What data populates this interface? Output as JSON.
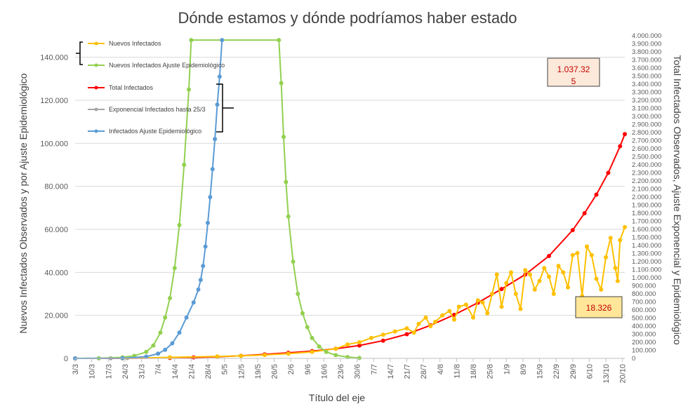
{
  "colors": {
    "nuevos": "#ffc000",
    "ajuste": "#92d050",
    "total": "#ff0000",
    "exponencial": "#a5a5a5",
    "infectados_ajuste": "#5b9bd5",
    "grid": "#d9d9d9",
    "callout_fill_red": "#fde9d9",
    "callout_fill_yellow": "#ffe699"
  },
  "chart_data": {
    "type": "line",
    "title": "Dónde estamos y dónde podríamos haber estado",
    "xlabel": "Título del eje",
    "ylabel_left": "Nuevos Infectados Observados y por Ajuste Epidemiológico",
    "ylabel_right": "Total Infectados Observados, Ajuste Exponencial y Epidemiológico",
    "ylim_left": [
      0,
      150000
    ],
    "ylim_right": [
      0,
      4000000
    ],
    "left_ticks": [
      "0",
      "20.000",
      "40.000",
      "60.000",
      "80.000",
      "100.000",
      "120.000",
      "140.000"
    ],
    "right_ticks": [
      "0",
      "100.000",
      "200.000",
      "300.000",
      "400.000",
      "500.000",
      "600.000",
      "700.000",
      "800.000",
      "900.000",
      "1.000.000",
      "1.100.000",
      "1.200.000",
      "1.300.000",
      "1.400.000",
      "1.500.000",
      "1.600.000",
      "1.700.000",
      "1.800.000",
      "1.900.000",
      "2.000.000",
      "2.100.000",
      "2.200.000",
      "2.300.000",
      "2.400.000",
      "2.500.000",
      "2.600.000",
      "2.700.000",
      "2.800.000",
      "2.900.000",
      "3.000.000",
      "3.100.000",
      "3.200.000",
      "3.300.000",
      "3.400.000",
      "3.500.000",
      "3.600.000",
      "3.700.000",
      "3.800.000",
      "3.900.000",
      "4.000.000"
    ],
    "x_ticks": [
      "3/3",
      "10/3",
      "17/3",
      "24/3",
      "31/3",
      "7/4",
      "14/4",
      "21/4",
      "28/4",
      "5/5",
      "12/5",
      "19/5",
      "26/5",
      "2/6",
      "9/6",
      "16/6",
      "23/6",
      "30/6",
      "7/7",
      "14/7",
      "21/7",
      "28/7",
      "4/8",
      "11/8",
      "18/8",
      "25/8",
      "1/9",
      "8/9",
      "15/9",
      "22/9",
      "29/9",
      "6/10",
      "13/10",
      "20/10"
    ],
    "x_range_days": [
      0,
      232
    ],
    "grid": "horizontal",
    "legend_position": "top-left",
    "legend": [
      {
        "label": "Nuevos Infectados",
        "color": "#ffc000"
      },
      {
        "label": "Nuevos Infectados Ajuste Epidemiológico",
        "color": "#92d050"
      },
      {
        "label": "Total Infectados",
        "color": "#ff0000"
      },
      {
        "label": "Exponencial Infectados hasta 25/3",
        "color": "#a5a5a5"
      },
      {
        "label": "Infectados Ajuste Epidemiológico",
        "color": "#5b9bd5"
      }
    ],
    "annotations": [
      {
        "text_line1": "1.037.32",
        "text_line2": "5",
        "series": "Total Infectados"
      },
      {
        "text_line1": "18.326",
        "series": "Nuevos Infectados"
      }
    ],
    "series": [
      {
        "name": "Total Infectados",
        "axis": "right",
        "color": "#ff0000",
        "points": [
          [
            0,
            100
          ],
          [
            20,
            1000
          ],
          [
            40,
            5000
          ],
          [
            50,
            12000
          ],
          [
            60,
            20000
          ],
          [
            70,
            33000
          ],
          [
            80,
            50000
          ],
          [
            90,
            70000
          ],
          [
            100,
            90000
          ],
          [
            110,
            120000
          ],
          [
            120,
            160000
          ],
          [
            130,
            220000
          ],
          [
            140,
            300000
          ],
          [
            150,
            410000
          ],
          [
            160,
            540000
          ],
          [
            170,
            690000
          ],
          [
            180,
            860000
          ],
          [
            190,
            1040000
          ],
          [
            200,
            1270000
          ],
          [
            210,
            1590000
          ],
          [
            215,
            1800000
          ],
          [
            220,
            2030000
          ],
          [
            225,
            2300000
          ],
          [
            230,
            2630000
          ],
          [
            232,
            2780000
          ]
        ]
      },
      {
        "name": "Nuevos Infectados Ajuste Epidemiológico",
        "axis": "left",
        "color": "#92d050",
        "points": [
          [
            0,
            0
          ],
          [
            10,
            100
          ],
          [
            20,
            500
          ],
          [
            25,
            1200
          ],
          [
            30,
            3000
          ],
          [
            33,
            6000
          ],
          [
            36,
            12000
          ],
          [
            38,
            19000
          ],
          [
            40,
            28000
          ],
          [
            42,
            42000
          ],
          [
            44,
            62000
          ],
          [
            46,
            90000
          ],
          [
            48,
            125000
          ],
          [
            49,
            148000
          ],
          [
            86,
            148000
          ],
          [
            87,
            128000
          ],
          [
            88,
            103000
          ],
          [
            89,
            82000
          ],
          [
            90,
            66000
          ],
          [
            92,
            45000
          ],
          [
            94,
            30000
          ],
          [
            96,
            21000
          ],
          [
            98,
            14500
          ],
          [
            100,
            9500
          ],
          [
            103,
            5500
          ],
          [
            106,
            3000
          ],
          [
            110,
            1500
          ],
          [
            115,
            600
          ],
          [
            120,
            200
          ]
        ]
      },
      {
        "name": "Infectados Ajuste Epidemiológico",
        "axis": "left",
        "color": "#5b9bd5",
        "points": [
          [
            0,
            0
          ],
          [
            20,
            100
          ],
          [
            30,
            800
          ],
          [
            35,
            2200
          ],
          [
            38,
            4000
          ],
          [
            41,
            7000
          ],
          [
            44,
            12000
          ],
          [
            47,
            19000
          ],
          [
            50,
            26000
          ],
          [
            52,
            32000
          ],
          [
            53,
            36500
          ],
          [
            54,
            43000
          ],
          [
            55,
            52000
          ],
          [
            56,
            63000
          ],
          [
            57,
            75000
          ],
          [
            58,
            88000
          ],
          [
            59,
            102000
          ],
          [
            60,
            118000
          ],
          [
            61,
            131000
          ],
          [
            62,
            148000
          ]
        ]
      },
      {
        "name": "Nuevos Infectados",
        "axis": "left",
        "color": "#ffc000",
        "points": [
          [
            20,
            0
          ],
          [
            40,
            500
          ],
          [
            60,
            900
          ],
          [
            70,
            1200
          ],
          [
            80,
            1600
          ],
          [
            90,
            2200
          ],
          [
            100,
            3000
          ],
          [
            110,
            4500
          ],
          [
            115,
            6500
          ],
          [
            120,
            7500
          ],
          [
            125,
            9500
          ],
          [
            130,
            11000
          ],
          [
            135,
            12500
          ],
          [
            140,
            14000
          ],
          [
            143,
            12000
          ],
          [
            145,
            16000
          ],
          [
            148,
            19000
          ],
          [
            150,
            15000
          ],
          [
            152,
            17000
          ],
          [
            155,
            20000
          ],
          [
            158,
            22000
          ],
          [
            160,
            18000
          ],
          [
            162,
            24000
          ],
          [
            165,
            25000
          ],
          [
            168,
            19000
          ],
          [
            170,
            27000
          ],
          [
            172,
            26000
          ],
          [
            174,
            21000
          ],
          [
            176,
            30000
          ],
          [
            178,
            39000
          ],
          [
            180,
            24000
          ],
          [
            182,
            35000
          ],
          [
            184,
            40000
          ],
          [
            186,
            30000
          ],
          [
            188,
            23000
          ],
          [
            190,
            41000
          ],
          [
            192,
            39000
          ],
          [
            194,
            32000
          ],
          [
            196,
            36000
          ],
          [
            198,
            42000
          ],
          [
            200,
            38000
          ],
          [
            202,
            30000
          ],
          [
            204,
            43000
          ],
          [
            206,
            40000
          ],
          [
            208,
            33000
          ],
          [
            210,
            48000
          ],
          [
            212,
            49000
          ],
          [
            214,
            29000
          ],
          [
            216,
            52000
          ],
          [
            218,
            48000
          ],
          [
            220,
            37000
          ],
          [
            222,
            32000
          ],
          [
            224,
            47000
          ],
          [
            226,
            56000
          ],
          [
            228,
            42000
          ],
          [
            229,
            36000
          ],
          [
            230,
            55000
          ],
          [
            232,
            61000
          ]
        ]
      },
      {
        "name": "Exponencial Infectados hasta 25/3",
        "axis": "right",
        "color": "#a5a5a5",
        "points": [
          [
            0,
            0
          ],
          [
            10,
            200
          ],
          [
            15,
            800
          ],
          [
            20,
            2000
          ],
          [
            22,
            3500
          ]
        ]
      }
    ]
  }
}
